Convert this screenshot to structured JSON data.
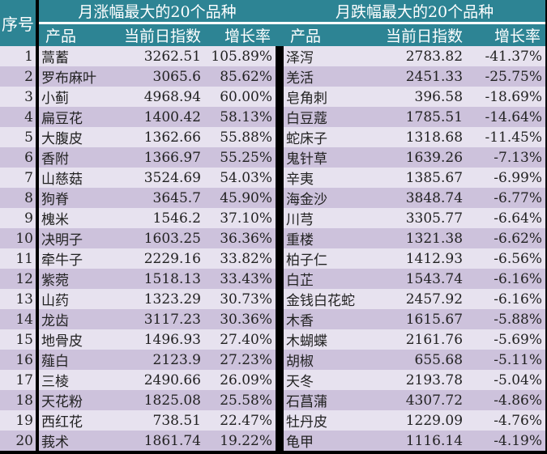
{
  "header": {
    "index_label": "序号",
    "left_title": "月涨幅最大的20个品种",
    "right_title": "月跌幅最大的20个品种",
    "col_product": "产品",
    "col_index": "当前日指数",
    "col_growth": "增长率"
  },
  "colors": {
    "header_bg": "#2d8494",
    "row_light": "#e7e2ef",
    "row_dark": "#cdc2dc"
  },
  "rows": [
    {
      "n": "1",
      "up_name": "蒿蓄",
      "up_idx": "3262.51",
      "up_pct": "105.89%",
      "down_name": "泽泻",
      "down_idx": "2783.82",
      "down_pct": "-41.37%"
    },
    {
      "n": "2",
      "up_name": "罗布麻叶",
      "up_idx": "3065.6",
      "up_pct": "85.62%",
      "down_name": "羌活",
      "down_idx": "2451.33",
      "down_pct": "-25.75%"
    },
    {
      "n": "3",
      "up_name": "小蓟",
      "up_idx": "4968.94",
      "up_pct": "60.00%",
      "down_name": "皂角刺",
      "down_idx": "396.58",
      "down_pct": "-18.69%"
    },
    {
      "n": "4",
      "up_name": "扁豆花",
      "up_idx": "1400.42",
      "up_pct": "58.13%",
      "down_name": "白豆蔻",
      "down_idx": "1785.51",
      "down_pct": "-14.64%"
    },
    {
      "n": "5",
      "up_name": "大腹皮",
      "up_idx": "1362.66",
      "up_pct": "55.88%",
      "down_name": "蛇床子",
      "down_idx": "1318.68",
      "down_pct": "-11.45%"
    },
    {
      "n": "6",
      "up_name": "香附",
      "up_idx": "1366.97",
      "up_pct": "55.25%",
      "down_name": "鬼针草",
      "down_idx": "1639.26",
      "down_pct": "-7.13%"
    },
    {
      "n": "7",
      "up_name": "山慈菇",
      "up_idx": "3524.69",
      "up_pct": "54.03%",
      "down_name": "辛夷",
      "down_idx": "1385.67",
      "down_pct": "-6.99%"
    },
    {
      "n": "8",
      "up_name": "狗脊",
      "up_idx": "3645.7",
      "up_pct": "45.90%",
      "down_name": "海金沙",
      "down_idx": "3848.74",
      "down_pct": "-6.77%"
    },
    {
      "n": "9",
      "up_name": "槐米",
      "up_idx": "1546.2",
      "up_pct": "37.10%",
      "down_name": "川芎",
      "down_idx": "3305.77",
      "down_pct": "-6.64%"
    },
    {
      "n": "10",
      "up_name": "决明子",
      "up_idx": "1603.25",
      "up_pct": "36.36%",
      "down_name": "重楼",
      "down_idx": "1321.38",
      "down_pct": "-6.62%"
    },
    {
      "n": "11",
      "up_name": "牵牛子",
      "up_idx": "2229.16",
      "up_pct": "33.82%",
      "down_name": "柏子仁",
      "down_idx": "1412.93",
      "down_pct": "-6.56%"
    },
    {
      "n": "12",
      "up_name": "紫菀",
      "up_idx": "1518.13",
      "up_pct": "33.43%",
      "down_name": "白芷",
      "down_idx": "1543.74",
      "down_pct": "-6.16%"
    },
    {
      "n": "13",
      "up_name": "山药",
      "up_idx": "1323.29",
      "up_pct": "30.73%",
      "down_name": "金钱白花蛇",
      "down_idx": "2457.92",
      "down_pct": "-6.16%"
    },
    {
      "n": "14",
      "up_name": "龙齿",
      "up_idx": "3117.23",
      "up_pct": "30.36%",
      "down_name": "木香",
      "down_idx": "1615.67",
      "down_pct": "-5.88%"
    },
    {
      "n": "15",
      "up_name": "地骨皮",
      "up_idx": "1496.93",
      "up_pct": "27.40%",
      "down_name": "木蝴蝶",
      "down_idx": "2161.76",
      "down_pct": "-5.69%"
    },
    {
      "n": "16",
      "up_name": "薤白",
      "up_idx": "2123.9",
      "up_pct": "27.23%",
      "down_name": "胡椒",
      "down_idx": "655.68",
      "down_pct": "-5.11%"
    },
    {
      "n": "17",
      "up_name": "三棱",
      "up_idx": "2490.66",
      "up_pct": "26.09%",
      "down_name": "天冬",
      "down_idx": "2193.78",
      "down_pct": "-5.04%"
    },
    {
      "n": "18",
      "up_name": "天花粉",
      "up_idx": "1825.08",
      "up_pct": "25.58%",
      "down_name": "石菖蒲",
      "down_idx": "4307.72",
      "down_pct": "-4.86%"
    },
    {
      "n": "19",
      "up_name": "西红花",
      "up_idx": "738.51",
      "up_pct": "22.47%",
      "down_name": "牡丹皮",
      "down_idx": "1229.09",
      "down_pct": "-4.76%"
    },
    {
      "n": "20",
      "up_name": "莪术",
      "up_idx": "1861.74",
      "up_pct": "19.22%",
      "down_name": "龟甲",
      "down_idx": "1116.14",
      "down_pct": "-4.19%"
    }
  ]
}
